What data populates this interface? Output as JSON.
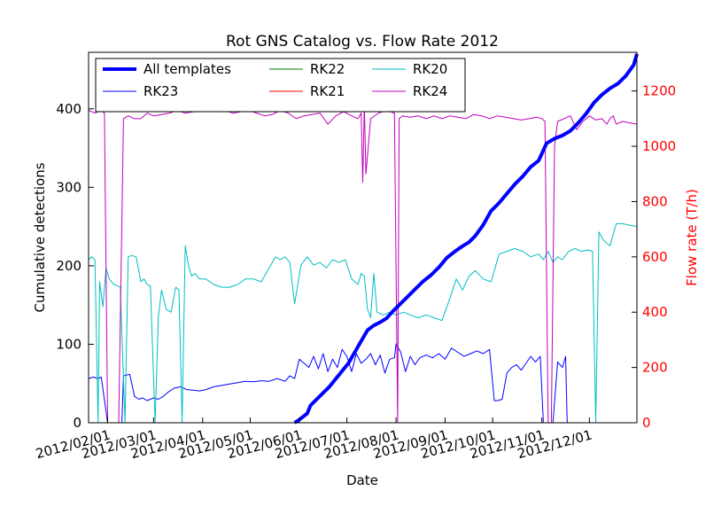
{
  "chart_data": {
    "type": "line",
    "title": "Rot GNS Catalog vs. Flow Rate 2012",
    "xlabel": "Date",
    "ylabel": "Cumulative detections",
    "ylabel_right": "Flow rate (T/h)",
    "xlim": [
      "2012-01-20",
      "2012-12-31"
    ],
    "ylim": [
      0,
      472
    ],
    "ylim_right": [
      0,
      1340
    ],
    "x_ticks": [
      "2012/02/01",
      "2012/03/01",
      "2012/04/01",
      "2012/05/01",
      "2012/06/01",
      "2012/07/01",
      "2012/08/01",
      "2012/09/01",
      "2012/10/01",
      "2012/11/01",
      "2012/12/01"
    ],
    "y_ticks": [
      0,
      100,
      200,
      300,
      400
    ],
    "y_ticks_right": [
      0,
      200,
      400,
      600,
      800,
      1000,
      1200
    ],
    "legend_position": "top-left",
    "legend_columns": 3,
    "grid": false,
    "colors": {
      "axis_right": "#ff0000"
    },
    "series": [
      {
        "name": "All templates",
        "axis": "left",
        "color": "#0000ff",
        "width": 4,
        "x": [
          "2012-05-29",
          "2012-06-01",
          "2012-06-06",
          "2012-06-08",
          "2012-06-12",
          "2012-06-16",
          "2012-06-20",
          "2012-06-24",
          "2012-06-28",
          "2012-07-02",
          "2012-07-06",
          "2012-07-10",
          "2012-07-14",
          "2012-07-18",
          "2012-07-22",
          "2012-07-26",
          "2012-07-30",
          "2012-08-03",
          "2012-08-08",
          "2012-08-13",
          "2012-08-18",
          "2012-08-23",
          "2012-08-28",
          "2012-09-02",
          "2012-09-07",
          "2012-09-12",
          "2012-09-16",
          "2012-09-20",
          "2012-09-25",
          "2012-09-30",
          "2012-10-05",
          "2012-10-10",
          "2012-10-15",
          "2012-10-20",
          "2012-10-25",
          "2012-10-30",
          "2012-11-04",
          "2012-11-09",
          "2012-11-14",
          "2012-11-19",
          "2012-11-24",
          "2012-11-29",
          "2012-12-04",
          "2012-12-09",
          "2012-12-14",
          "2012-12-19",
          "2012-12-24",
          "2012-12-29",
          "2012-12-31"
        ],
        "y": [
          0,
          4,
          12,
          22,
          30,
          38,
          46,
          56,
          66,
          76,
          90,
          104,
          118,
          124,
          128,
          133,
          142,
          150,
          160,
          170,
          180,
          188,
          198,
          210,
          218,
          225,
          230,
          238,
          252,
          270,
          280,
          292,
          304,
          314,
          326,
          334,
          356,
          362,
          366,
          372,
          382,
          394,
          408,
          418,
          426,
          432,
          442,
          456,
          470
        ]
      },
      {
        "name": "RK23",
        "axis": "right",
        "color": "#0000ff",
        "width": 1,
        "x": [
          "2012-01-20",
          "2012-01-23",
          "2012-01-26",
          "2012-01-28",
          "2012-02-01",
          "2012-02-03",
          "2012-02-05",
          "2012-02-07",
          "2012-02-10",
          "2012-02-11",
          "2012-02-15",
          "2012-02-18",
          "2012-02-21",
          "2012-02-23",
          "2012-02-26",
          "2012-03-01",
          "2012-03-04",
          "2012-03-07",
          "2012-03-10",
          "2012-03-14",
          "2012-03-18",
          "2012-03-22",
          "2012-03-26",
          "2012-03-30",
          "2012-04-03",
          "2012-04-08",
          "2012-04-13",
          "2012-04-18",
          "2012-04-23",
          "2012-04-28",
          "2012-05-03",
          "2012-05-08",
          "2012-05-13",
          "2012-05-18",
          "2012-05-23",
          "2012-05-26",
          "2012-05-29",
          "2012-06-01",
          "2012-06-04",
          "2012-06-07",
          "2012-06-10",
          "2012-06-13",
          "2012-06-16",
          "2012-06-19",
          "2012-06-22",
          "2012-06-25",
          "2012-06-28",
          "2012-07-01",
          "2012-07-04",
          "2012-07-07",
          "2012-07-10",
          "2012-07-13",
          "2012-07-16",
          "2012-07-19",
          "2012-07-22",
          "2012-07-25",
          "2012-07-28",
          "2012-07-31",
          "2012-08-01",
          "2012-08-04",
          "2012-08-07",
          "2012-08-10",
          "2012-08-13",
          "2012-08-16",
          "2012-08-20",
          "2012-08-24",
          "2012-08-28",
          "2012-09-01",
          "2012-09-05",
          "2012-09-09",
          "2012-09-13",
          "2012-09-17",
          "2012-09-21",
          "2012-09-25",
          "2012-09-29",
          "2012-10-02",
          "2012-10-04",
          "2012-10-07",
          "2012-10-10",
          "2012-10-13",
          "2012-10-16",
          "2012-10-19",
          "2012-10-22",
          "2012-10-25",
          "2012-10-28",
          "2012-10-31",
          "2012-11-02",
          "2012-11-05",
          "2012-11-08",
          "2012-11-11",
          "2012-11-14",
          "2012-11-16",
          "2012-11-17"
        ],
        "y": [
          160,
          165,
          160,
          165,
          0,
          0,
          0,
          0,
          0,
          170,
          175,
          95,
          85,
          90,
          80,
          90,
          85,
          95,
          110,
          125,
          130,
          120,
          118,
          115,
          120,
          130,
          135,
          140,
          145,
          150,
          148,
          152,
          150,
          160,
          150,
          170,
          160,
          230,
          215,
          200,
          240,
          195,
          250,
          185,
          230,
          200,
          265,
          240,
          185,
          250,
          215,
          230,
          250,
          210,
          245,
          180,
          230,
          235,
          285,
          255,
          185,
          240,
          210,
          235,
          245,
          235,
          250,
          230,
          270,
          255,
          240,
          250,
          260,
          250,
          265,
          80,
          80,
          85,
          180,
          200,
          210,
          190,
          215,
          240,
          220,
          240,
          0,
          0,
          0,
          220,
          200,
          240,
          0
        ]
      },
      {
        "name": "RK22",
        "axis": "right",
        "color": "#008000",
        "width": 1,
        "x": [
          "2012-01-20",
          "2012-12-31"
        ],
        "y": [
          0,
          0
        ]
      },
      {
        "name": "RK21",
        "axis": "right",
        "color": "#ff0000",
        "width": 1,
        "x": [
          "2012-01-20",
          "2012-12-31"
        ],
        "y": [
          0,
          0
        ]
      },
      {
        "name": "RK20",
        "axis": "right",
        "color": "#00bfbf",
        "width": 1,
        "x": [
          "2012-01-20",
          "2012-01-22",
          "2012-01-24",
          "2012-01-26",
          "2012-01-27",
          "2012-01-29",
          "2012-01-31",
          "2012-02-02",
          "2012-02-05",
          "2012-02-09",
          "2012-02-12",
          "2012-02-14",
          "2012-02-16",
          "2012-02-19",
          "2012-02-22",
          "2012-02-24",
          "2012-02-26",
          "2012-02-28",
          "2012-03-02",
          "2012-03-04",
          "2012-03-06",
          "2012-03-09",
          "2012-03-12",
          "2012-03-15",
          "2012-03-17",
          "2012-03-19",
          "2012-03-21",
          "2012-03-23",
          "2012-03-25",
          "2012-03-27",
          "2012-03-30",
          "2012-04-03",
          "2012-04-08",
          "2012-04-13",
          "2012-04-18",
          "2012-04-23",
          "2012-04-28",
          "2012-05-03",
          "2012-05-08",
          "2012-05-13",
          "2012-05-17",
          "2012-05-20",
          "2012-05-23",
          "2012-05-26",
          "2012-05-29",
          "2012-06-02",
          "2012-06-06",
          "2012-06-10",
          "2012-06-14",
          "2012-06-18",
          "2012-06-22",
          "2012-06-26",
          "2012-06-30",
          "2012-07-04",
          "2012-07-08",
          "2012-07-10",
          "2012-07-12",
          "2012-07-14",
          "2012-07-16",
          "2012-07-18",
          "2012-07-20",
          "2012-07-24",
          "2012-07-28",
          "2012-08-01",
          "2012-08-06",
          "2012-08-10",
          "2012-08-15",
          "2012-08-20",
          "2012-08-25",
          "2012-08-30",
          "2012-09-04",
          "2012-09-08",
          "2012-09-12",
          "2012-09-16",
          "2012-09-20",
          "2012-09-25",
          "2012-09-30",
          "2012-10-05",
          "2012-10-10",
          "2012-10-15",
          "2012-10-20",
          "2012-10-25",
          "2012-10-30",
          "2012-11-02",
          "2012-11-05",
          "2012-11-08",
          "2012-11-11",
          "2012-11-14",
          "2012-11-18",
          "2012-11-22",
          "2012-11-26",
          "2012-11-30",
          "2012-12-03",
          "2012-12-05",
          "2012-12-07",
          "2012-12-10",
          "2012-12-14",
          "2012-12-18",
          "2012-12-22",
          "2012-12-26",
          "2012-12-31"
        ],
        "y": [
          590,
          600,
          590,
          0,
          510,
          420,
          560,
          520,
          500,
          490,
          0,
          600,
          605,
          600,
          510,
          520,
          500,
          495,
          0,
          380,
          480,
          410,
          400,
          490,
          480,
          0,
          640,
          570,
          530,
          540,
          520,
          520,
          500,
          490,
          490,
          500,
          520,
          520,
          510,
          560,
          600,
          590,
          600,
          580,
          430,
          570,
          600,
          570,
          580,
          560,
          590,
          580,
          590,
          520,
          500,
          540,
          530,
          410,
          380,
          540,
          400,
          390,
          400,
          390,
          400,
          390,
          380,
          390,
          380,
          370,
          450,
          520,
          480,
          530,
          550,
          520,
          510,
          610,
          620,
          630,
          620,
          600,
          610,
          590,
          620,
          580,
          600,
          590,
          620,
          630,
          620,
          625,
          620,
          0,
          690,
          660,
          640,
          720,
          720,
          715,
          710
        ]
      },
      {
        "name": "RK24",
        "axis": "right",
        "color": "#bf00bf",
        "width": 1,
        "x": [
          "2012-01-20",
          "2012-01-24",
          "2012-01-28",
          "2012-01-30",
          "2012-02-01",
          "2012-02-04",
          "2012-02-08",
          "2012-02-11",
          "2012-02-14",
          "2012-02-18",
          "2012-02-22",
          "2012-02-26",
          "2012-03-01",
          "2012-03-06",
          "2012-03-11",
          "2012-03-16",
          "2012-03-21",
          "2012-03-26",
          "2012-03-31",
          "2012-04-05",
          "2012-04-10",
          "2012-04-15",
          "2012-04-20",
          "2012-04-25",
          "2012-04-30",
          "2012-05-05",
          "2012-05-10",
          "2012-05-15",
          "2012-05-20",
          "2012-05-25",
          "2012-05-30",
          "2012-06-04",
          "2012-06-09",
          "2012-06-14",
          "2012-06-19",
          "2012-06-24",
          "2012-06-29",
          "2012-07-04",
          "2012-07-08",
          "2012-07-10",
          "2012-07-11",
          "2012-07-12",
          "2012-07-13",
          "2012-07-16",
          "2012-07-21",
          "2012-07-26",
          "2012-07-31",
          "2012-08-02",
          "2012-08-03",
          "2012-08-05",
          "2012-08-10",
          "2012-08-15",
          "2012-08-20",
          "2012-08-25",
          "2012-08-30",
          "2012-09-04",
          "2012-09-09",
          "2012-09-14",
          "2012-09-19",
          "2012-09-24",
          "2012-09-29",
          "2012-10-04",
          "2012-10-09",
          "2012-10-14",
          "2012-10-19",
          "2012-10-24",
          "2012-10-29",
          "2012-11-01",
          "2012-11-03",
          "2012-11-05",
          "2012-11-07",
          "2012-11-09",
          "2012-11-11",
          "2012-11-15",
          "2012-11-19",
          "2012-11-23",
          "2012-11-27",
          "2012-12-01",
          "2012-12-05",
          "2012-12-09",
          "2012-12-12",
          "2012-12-14",
          "2012-12-16",
          "2012-12-18",
          "2012-12-22",
          "2012-12-26",
          "2012-12-31"
        ],
        "y": [
          1130,
          1120,
          1130,
          1120,
          0,
          0,
          0,
          1100,
          1110,
          1100,
          1100,
          1120,
          1110,
          1115,
          1120,
          1130,
          1120,
          1125,
          1130,
          1130,
          1125,
          1130,
          1120,
          1125,
          1130,
          1120,
          1110,
          1115,
          1130,
          1120,
          1100,
          1110,
          1115,
          1120,
          1080,
          1110,
          1125,
          1110,
          1100,
          1120,
          870,
          1150,
          900,
          1100,
          1120,
          1130,
          1120,
          0,
          1100,
          1110,
          1105,
          1110,
          1100,
          1110,
          1100,
          1110,
          1105,
          1100,
          1115,
          1110,
          1100,
          1110,
          1105,
          1100,
          1095,
          1100,
          1105,
          1100,
          1090,
          0,
          0,
          1000,
          1090,
          1100,
          1110,
          1060,
          1090,
          1110,
          1095,
          1100,
          1080,
          1100,
          1110,
          1080,
          1090,
          1085,
          1080
        ]
      }
    ]
  }
}
